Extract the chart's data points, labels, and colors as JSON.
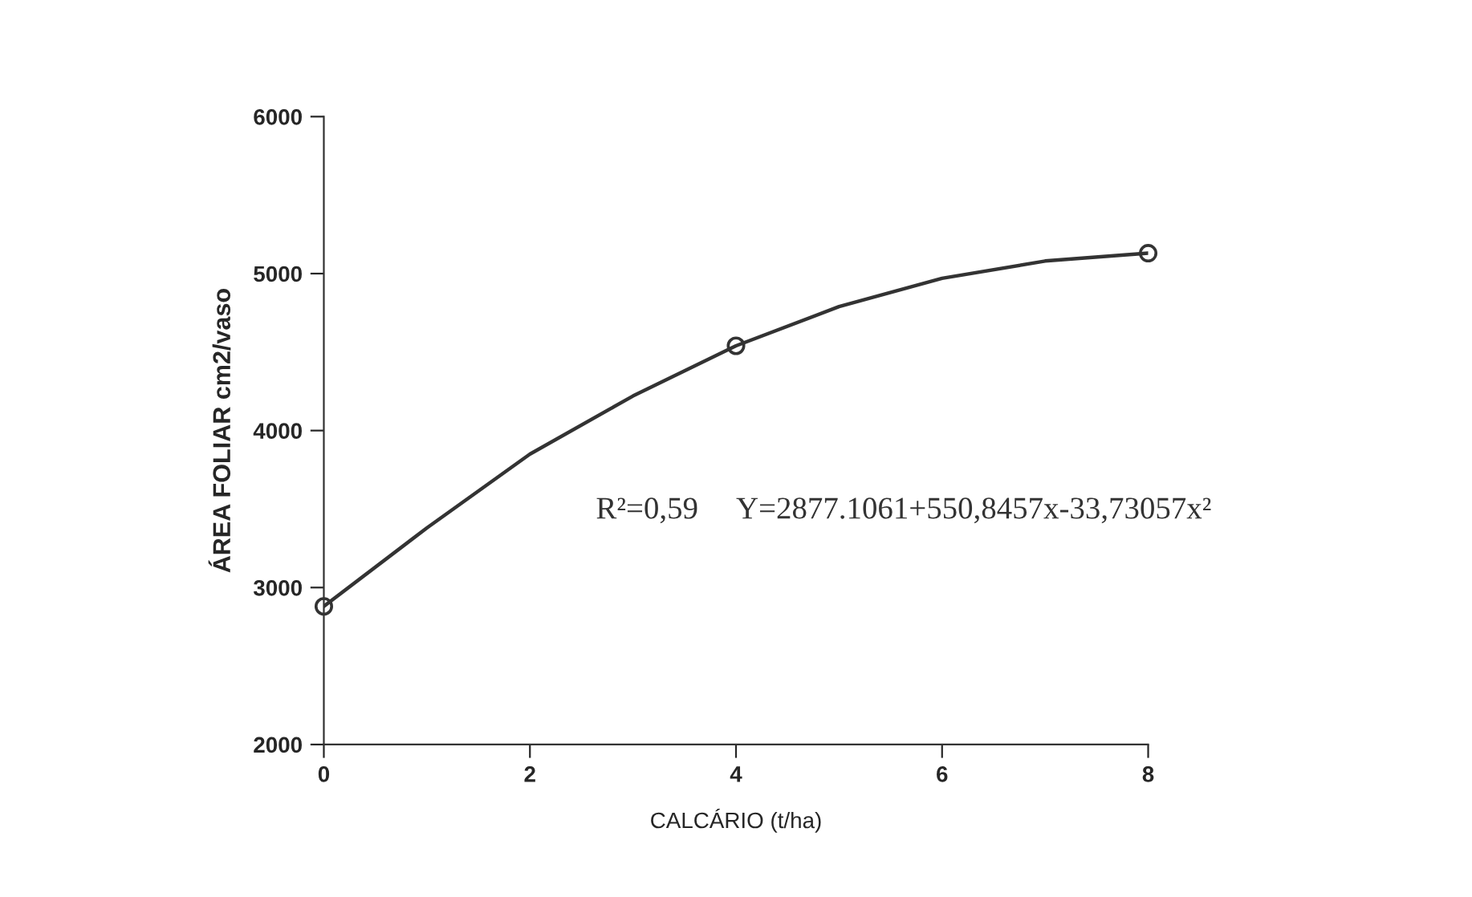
{
  "chart_data": {
    "type": "line",
    "xlabel": "CALCÁRIO (t/ha)",
    "ylabel": "ÁREA FOLIAR cm2/vaso",
    "xlim": [
      0,
      8
    ],
    "xticks": [
      0,
      2,
      4,
      6,
      8
    ],
    "ylim": [
      2000,
      6000
    ],
    "yticks": [
      2000,
      3000,
      4000,
      5000,
      6000
    ],
    "grid": false,
    "legend": false,
    "series": [
      {
        "type": "scatter",
        "color": "#333333",
        "marker": "circle",
        "x": [
          0,
          4,
          8
        ],
        "values": [
          2880,
          4540,
          5130
        ]
      },
      {
        "color": "#333333",
        "line_style": "solid",
        "x": [
          0,
          1,
          2,
          3,
          4,
          5,
          6,
          7,
          8
        ],
        "values": [
          2880,
          3380,
          3850,
          4220,
          4540,
          4790,
          4970,
          5080,
          5130
        ]
      }
    ],
    "annotations": [
      "R²=0,59",
      "Y=2877.1061+550,8457x-33,73057x²"
    ]
  }
}
